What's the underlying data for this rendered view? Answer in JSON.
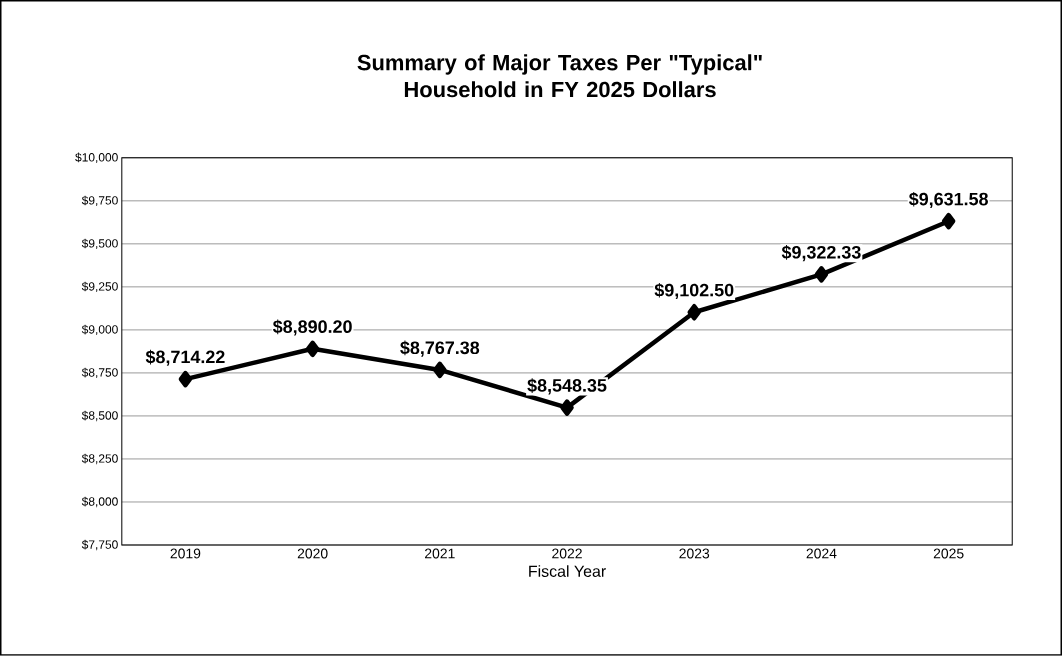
{
  "chart_data": {
    "type": "line",
    "title": "Summary of Major Taxes Per \"Typical\" Household in FY 2025 Dollars",
    "xlabel": "Fiscal Year",
    "categories": [
      "2019",
      "2020",
      "2021",
      "2022",
      "2023",
      "2024",
      "2025"
    ],
    "series": [
      {
        "color": "#000000",
        "values": [
          8714.22,
          8890.2,
          8767.38,
          8548.35,
          9102.5,
          9322.33,
          9631.58
        ],
        "value_labels": [
          "$8,714.22",
          "$8,890.20",
          "$8,767.38",
          "$8,548.35",
          "$9,102.50",
          "$9,322.33",
          "$9,631.58"
        ]
      }
    ],
    "ylim": [
      7750,
      10000
    ],
    "yticks": [
      {
        "value": 7750,
        "label": "$7,750"
      },
      {
        "value": 8000,
        "label": "$8,000"
      },
      {
        "value": 8250,
        "label": "$8,250"
      },
      {
        "value": 8500,
        "label": "$8,500"
      },
      {
        "value": 8750,
        "label": "$8,750"
      },
      {
        "value": 9000,
        "label": "$9,000"
      },
      {
        "value": 9250,
        "label": "$9,250"
      },
      {
        "value": 9500,
        "label": "$9,500"
      },
      {
        "value": 9750,
        "label": "$9,750"
      },
      {
        "value": 10000,
        "label": "$10,000"
      }
    ],
    "grid": "y",
    "marker": "diamond",
    "line_style": "solid"
  }
}
